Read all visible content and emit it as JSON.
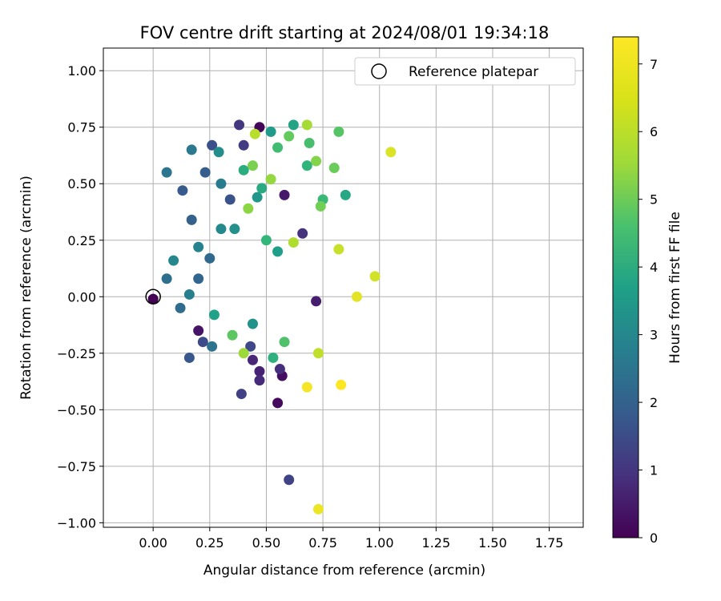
{
  "chart_data": {
    "type": "scatter",
    "title": "FOV centre drift starting at 2024/08/01 19:34:18",
    "xlabel": "Angular distance from reference (arcmin)",
    "ylabel": "Rotation from reference (arcmin)",
    "xlim": [
      -0.22,
      1.9
    ],
    "ylim": [
      -1.02,
      1.1
    ],
    "xticks": [
      "0.00",
      "0.25",
      "0.50",
      "0.75",
      "1.00",
      "1.25",
      "1.50",
      "1.75"
    ],
    "xtick_values": [
      0,
      0.25,
      0.5,
      0.75,
      1.0,
      1.25,
      1.5,
      1.75
    ],
    "yticks": [
      "1.00",
      "0.75",
      "0.50",
      "0.25",
      "0.00",
      "−0.25",
      "−0.50",
      "−0.75",
      "−1.00"
    ],
    "ytick_values": [
      1.0,
      0.75,
      0.5,
      0.25,
      0.0,
      -0.25,
      -0.5,
      -0.75,
      -1.0
    ],
    "grid": true,
    "legend": {
      "position": "top-right",
      "entries": [
        "Reference platepar"
      ]
    },
    "reference_point": {
      "x": 0.0,
      "y": 0.0
    },
    "colorbar": {
      "label": "Hours from first FF file",
      "colormap": "viridis",
      "range": [
        0,
        7.4
      ],
      "ticks": [
        "0",
        "1",
        "2",
        "3",
        "4",
        "5",
        "6",
        "7"
      ],
      "tick_values": [
        0,
        1,
        2,
        3,
        4,
        5,
        6,
        7
      ]
    },
    "series": [
      {
        "color_by": "hours",
        "points": [
          [
            0.0,
            -0.01,
            0.0
          ],
          [
            0.47,
            0.75,
            0.1
          ],
          [
            0.55,
            -0.47,
            0.2
          ],
          [
            0.57,
            -0.35,
            0.3
          ],
          [
            0.2,
            -0.15,
            0.4
          ],
          [
            0.58,
            0.45,
            0.5
          ],
          [
            0.72,
            -0.02,
            0.6
          ],
          [
            0.47,
            -0.33,
            0.7
          ],
          [
            0.44,
            -0.28,
            0.8
          ],
          [
            0.47,
            -0.37,
            0.9
          ],
          [
            0.56,
            -0.32,
            1.0
          ],
          [
            0.66,
            0.28,
            1.1
          ],
          [
            0.38,
            0.76,
            1.2
          ],
          [
            0.4,
            0.67,
            1.3
          ],
          [
            0.39,
            -0.43,
            1.4
          ],
          [
            0.6,
            -0.81,
            1.5
          ],
          [
            0.43,
            -0.22,
            1.6
          ],
          [
            0.22,
            -0.2,
            1.7
          ],
          [
            0.26,
            0.67,
            1.8
          ],
          [
            0.34,
            0.43,
            1.9
          ],
          [
            0.16,
            -0.27,
            2.0
          ],
          [
            0.13,
            0.47,
            2.1
          ],
          [
            0.23,
            0.55,
            2.2
          ],
          [
            0.17,
            0.34,
            2.3
          ],
          [
            0.2,
            0.08,
            2.4
          ],
          [
            0.25,
            0.17,
            2.5
          ],
          [
            0.12,
            -0.05,
            2.6
          ],
          [
            0.06,
            0.08,
            2.7
          ],
          [
            0.26,
            -0.22,
            2.8
          ],
          [
            0.06,
            0.55,
            2.9
          ],
          [
            0.17,
            0.65,
            3.0
          ],
          [
            0.3,
            0.5,
            3.1
          ],
          [
            0.16,
            0.01,
            3.2
          ],
          [
            0.2,
            0.22,
            3.3
          ],
          [
            0.09,
            0.16,
            3.4
          ],
          [
            0.3,
            0.3,
            3.5
          ],
          [
            0.29,
            0.64,
            3.6
          ],
          [
            0.36,
            0.3,
            3.7
          ],
          [
            0.44,
            -0.12,
            3.8
          ],
          [
            0.46,
            0.44,
            3.9
          ],
          [
            0.52,
            0.73,
            4.0
          ],
          [
            0.55,
            0.2,
            4.1
          ],
          [
            0.27,
            -0.08,
            4.2
          ],
          [
            0.62,
            0.76,
            4.3
          ],
          [
            0.85,
            0.45,
            4.4
          ],
          [
            0.48,
            0.48,
            4.5
          ],
          [
            0.4,
            0.56,
            4.6
          ],
          [
            0.53,
            -0.27,
            4.7
          ],
          [
            0.68,
            0.58,
            4.8
          ],
          [
            0.5,
            0.25,
            4.9
          ],
          [
            0.75,
            0.43,
            5.0
          ],
          [
            0.55,
            0.66,
            5.1
          ],
          [
            0.69,
            0.68,
            5.2
          ],
          [
            0.58,
            -0.2,
            5.3
          ],
          [
            0.82,
            0.73,
            5.4
          ],
          [
            0.35,
            -0.17,
            5.5
          ],
          [
            0.6,
            0.71,
            5.6
          ],
          [
            0.8,
            0.57,
            5.7
          ],
          [
            0.74,
            0.4,
            5.8
          ],
          [
            0.44,
            0.58,
            5.9
          ],
          [
            0.72,
            0.6,
            6.0
          ],
          [
            0.42,
            0.39,
            6.1
          ],
          [
            0.52,
            0.52,
            6.2
          ],
          [
            0.4,
            -0.25,
            6.3
          ],
          [
            0.68,
            0.76,
            6.4
          ],
          [
            0.62,
            0.24,
            6.5
          ],
          [
            0.45,
            0.72,
            6.6
          ],
          [
            0.73,
            -0.25,
            6.7
          ],
          [
            0.82,
            0.21,
            6.8
          ],
          [
            0.98,
            0.09,
            6.9
          ],
          [
            1.05,
            0.64,
            7.0
          ],
          [
            0.9,
            0.0,
            7.1
          ],
          [
            0.73,
            -0.94,
            7.2
          ],
          [
            0.68,
            -0.4,
            7.3
          ],
          [
            0.83,
            -0.39,
            7.4
          ]
        ]
      }
    ]
  }
}
